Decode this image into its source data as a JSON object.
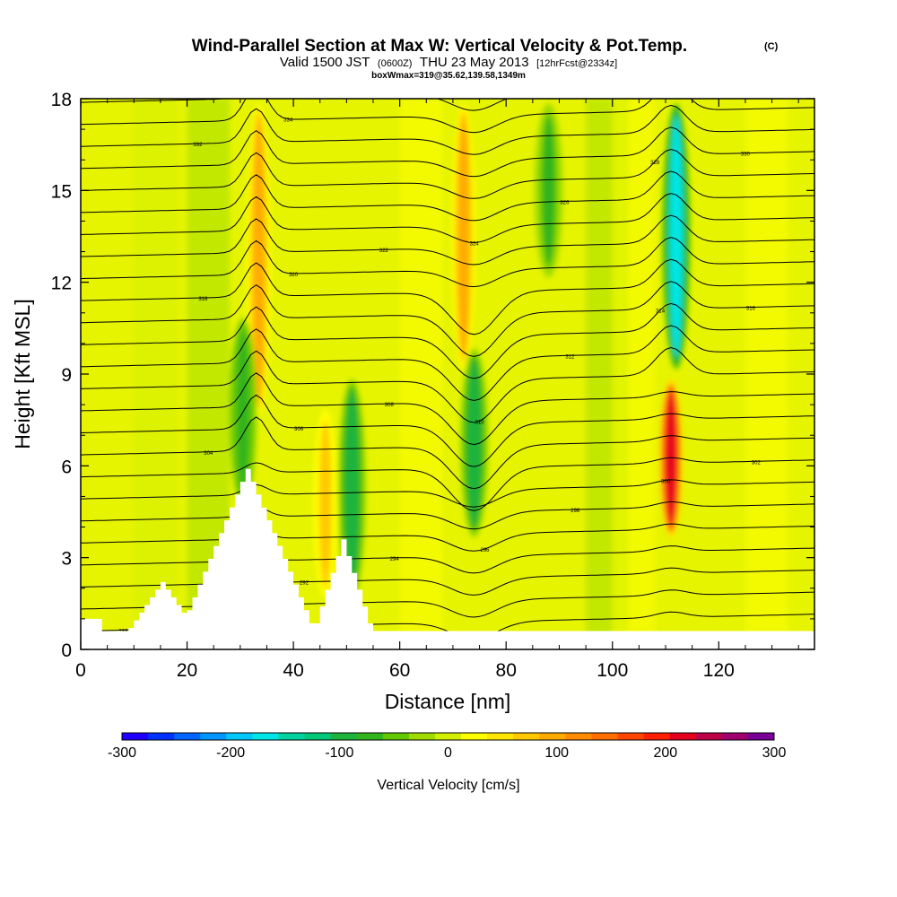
{
  "chart_data": {
    "type": "heatmap",
    "title": "Wind-Parallel Section at Max W: Vertical Velocity & Pot.Temp.",
    "title_mark": "(C)",
    "subtitle": {
      "valid": "Valid 1500 JST",
      "utc": "(0600Z)",
      "date": "THU 23 May 2013",
      "forecast": "[12hrFcst@2334z]"
    },
    "box_info": "boxWmax=319@35.62,139.58,1349m",
    "xlabel": "Distance [nm]",
    "ylabel": "Height [Kft MSL]",
    "xlim": [
      0,
      138
    ],
    "ylim": [
      0,
      18
    ],
    "x_ticks": [
      0,
      20,
      40,
      60,
      80,
      100,
      120
    ],
    "y_ticks": [
      0,
      3,
      6,
      9,
      12,
      15,
      18
    ],
    "colorbar": {
      "label": "Vertical Velocity [cm/s]",
      "range": [
        -300,
        300
      ],
      "tick_values": [
        -300,
        -200,
        -100,
        0,
        100,
        200,
        300
      ],
      "tick_labels": [
        "-300",
        "-200",
        "-100",
        "0",
        "100",
        "200",
        "300"
      ],
      "colors": [
        "#1e00ff",
        "#0032ff",
        "#0064ff",
        "#0096ff",
        "#00c8ff",
        "#00e6e6",
        "#00d2a0",
        "#00c878",
        "#1eb43c",
        "#32b41e",
        "#64c800",
        "#a0dc00",
        "#d2f000",
        "#ffff00",
        "#ffe600",
        "#ffc800",
        "#ffaa00",
        "#ff8c00",
        "#ff6e00",
        "#ff4600",
        "#ff1e00",
        "#e6001e",
        "#be0046",
        "#a0006e",
        "#780096"
      ]
    },
    "velocity_features": [
      {
        "name": "updraft",
        "x_center": 33.5,
        "y_bottom": 7.5,
        "y_top": 18,
        "peak": 90
      },
      {
        "name": "downdraft",
        "x_center": 30.5,
        "y_bottom": 4.5,
        "y_top": 11,
        "peak": -80
      },
      {
        "name": "updraft",
        "x_center": 46,
        "y_bottom": 1.5,
        "y_top": 8,
        "peak": 70
      },
      {
        "name": "downdraft",
        "x_center": 51,
        "y_bottom": 1.5,
        "y_top": 9,
        "peak": -90
      },
      {
        "name": "updraft",
        "x_center": 72,
        "y_bottom": 9,
        "y_top": 18,
        "peak": 100
      },
      {
        "name": "downdraft",
        "x_center": 74,
        "y_bottom": 3.5,
        "y_top": 10,
        "peak": -90
      },
      {
        "name": "downdraft",
        "x_center": 88,
        "y_bottom": 12,
        "y_top": 18,
        "peak": -70
      },
      {
        "name": "updraft",
        "x_center": 111,
        "y_bottom": 3.5,
        "y_top": 9,
        "peak": 220
      },
      {
        "name": "downdraft",
        "x_center": 112,
        "y_bottom": 9,
        "y_top": 18,
        "peak": -160
      }
    ],
    "theta_contour_levels_K": [
      288,
      290,
      292,
      294,
      296,
      298,
      300,
      302,
      304,
      306,
      308,
      310,
      312,
      314,
      316,
      318,
      320,
      322,
      324,
      326,
      328,
      330,
      332,
      334,
      336
    ]
  }
}
